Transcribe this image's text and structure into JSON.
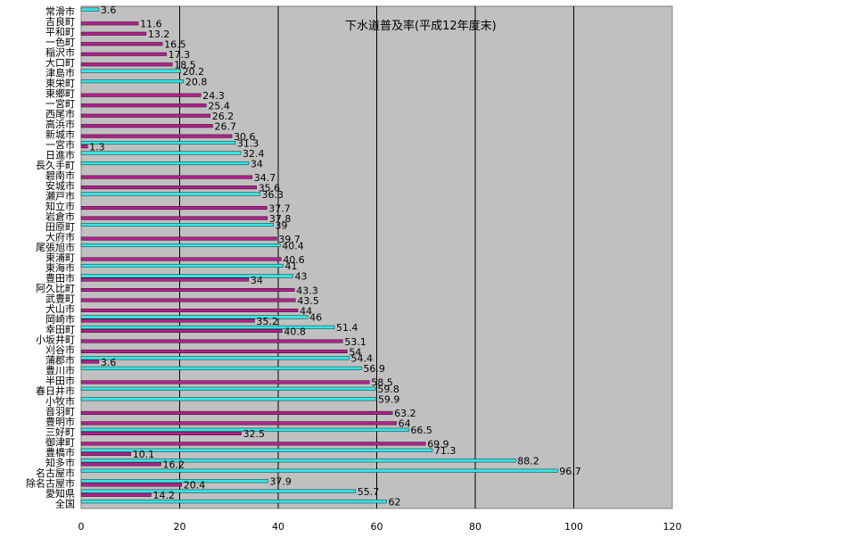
{
  "chart_data": {
    "type": "bar",
    "orientation": "horizontal",
    "title": "下水道普及率(平成12年度末)",
    "xlim": [
      0,
      120
    ],
    "xticks": [
      0,
      20,
      40,
      60,
      80,
      100,
      120
    ],
    "grid": "vertical",
    "colors": {
      "plot_bg": "#c0c0c0",
      "cyan": "#33e6e6",
      "magenta": "#b2208c"
    },
    "rows": [
      {
        "label": "常滑市",
        "cyan": 3.6,
        "magenta": null
      },
      {
        "label": "吉良町",
        "cyan": null,
        "magenta": 11.6
      },
      {
        "label": "平和町",
        "cyan": null,
        "magenta": 13.2
      },
      {
        "label": "一色町",
        "cyan": null,
        "magenta": 16.5
      },
      {
        "label": "稲沢市",
        "cyan": null,
        "magenta": 17.3
      },
      {
        "label": "大口町",
        "cyan": null,
        "magenta": 18.5
      },
      {
        "label": "津島市",
        "cyan": 20.2,
        "magenta": null
      },
      {
        "label": "東栄町",
        "cyan": 20.8,
        "magenta": null
      },
      {
        "label": "東郷町",
        "cyan": null,
        "magenta": 24.3
      },
      {
        "label": "一宮町",
        "cyan": null,
        "magenta": 25.4
      },
      {
        "label": "西尾市",
        "cyan": null,
        "magenta": 26.2
      },
      {
        "label": "高浜市",
        "cyan": null,
        "magenta": 26.7
      },
      {
        "label": "新城市",
        "cyan": null,
        "magenta": 30.6
      },
      {
        "label": "一宮市",
        "cyan": 31.3,
        "magenta": 1.3
      },
      {
        "label": "日進市",
        "cyan": 32.4,
        "magenta": null
      },
      {
        "label": "長久手町",
        "cyan": 34,
        "magenta": null
      },
      {
        "label": "碧南市",
        "cyan": null,
        "magenta": 34.7
      },
      {
        "label": "安城市",
        "cyan": null,
        "magenta": 35.6
      },
      {
        "label": "瀬戸市",
        "cyan": 36.3,
        "magenta": null
      },
      {
        "label": "知立市",
        "cyan": null,
        "magenta": 37.7
      },
      {
        "label": "岩倉市",
        "cyan": null,
        "magenta": 37.8
      },
      {
        "label": "田原町",
        "cyan": 39,
        "magenta": null
      },
      {
        "label": "大府市",
        "cyan": null,
        "magenta": 39.7
      },
      {
        "label": "尾張旭市",
        "cyan": 40.4,
        "magenta": null
      },
      {
        "label": "東浦町",
        "cyan": null,
        "magenta": 40.6
      },
      {
        "label": "東海市",
        "cyan": 41,
        "magenta": null
      },
      {
        "label": "豊田市",
        "cyan": 43,
        "magenta": 34
      },
      {
        "label": "阿久比町",
        "cyan": null,
        "magenta": 43.3
      },
      {
        "label": "武豊町",
        "cyan": null,
        "magenta": 43.5
      },
      {
        "label": "犬山市",
        "cyan": null,
        "magenta": 44
      },
      {
        "label": "岡崎市",
        "cyan": 46,
        "magenta": 35.2
      },
      {
        "label": "幸田町",
        "cyan": 51.4,
        "magenta": 40.8
      },
      {
        "label": "小坂井町",
        "cyan": null,
        "magenta": 53.1
      },
      {
        "label": "刈谷市",
        "cyan": null,
        "magenta": 54
      },
      {
        "label": "蒲郡市",
        "cyan": 54.4,
        "magenta": 3.6
      },
      {
        "label": "豊川市",
        "cyan": 56.9,
        "magenta": null
      },
      {
        "label": "半田市",
        "cyan": null,
        "magenta": 58.5
      },
      {
        "label": "春日井市",
        "cyan": 59.8,
        "magenta": null
      },
      {
        "label": "小牧市",
        "cyan": 59.9,
        "magenta": null
      },
      {
        "label": "音羽町",
        "cyan": null,
        "magenta": 63.2
      },
      {
        "label": "豊明市",
        "cyan": null,
        "magenta": 64
      },
      {
        "label": "三好町",
        "cyan": 66.5,
        "magenta": 32.5
      },
      {
        "label": "御津町",
        "cyan": null,
        "magenta": 69.9
      },
      {
        "label": "豊橋市",
        "cyan": 71.3,
        "magenta": 10.1
      },
      {
        "label": "知多市",
        "cyan": 88.2,
        "magenta": 16.2
      },
      {
        "label": "名古屋市",
        "cyan": 96.7,
        "magenta": null
      },
      {
        "label": "除名古屋市",
        "cyan": 37.9,
        "magenta": 20.4
      },
      {
        "label": "愛知県",
        "cyan": 55.7,
        "magenta": 14.2
      },
      {
        "label": "全国",
        "cyan": 62,
        "magenta": null
      }
    ]
  }
}
